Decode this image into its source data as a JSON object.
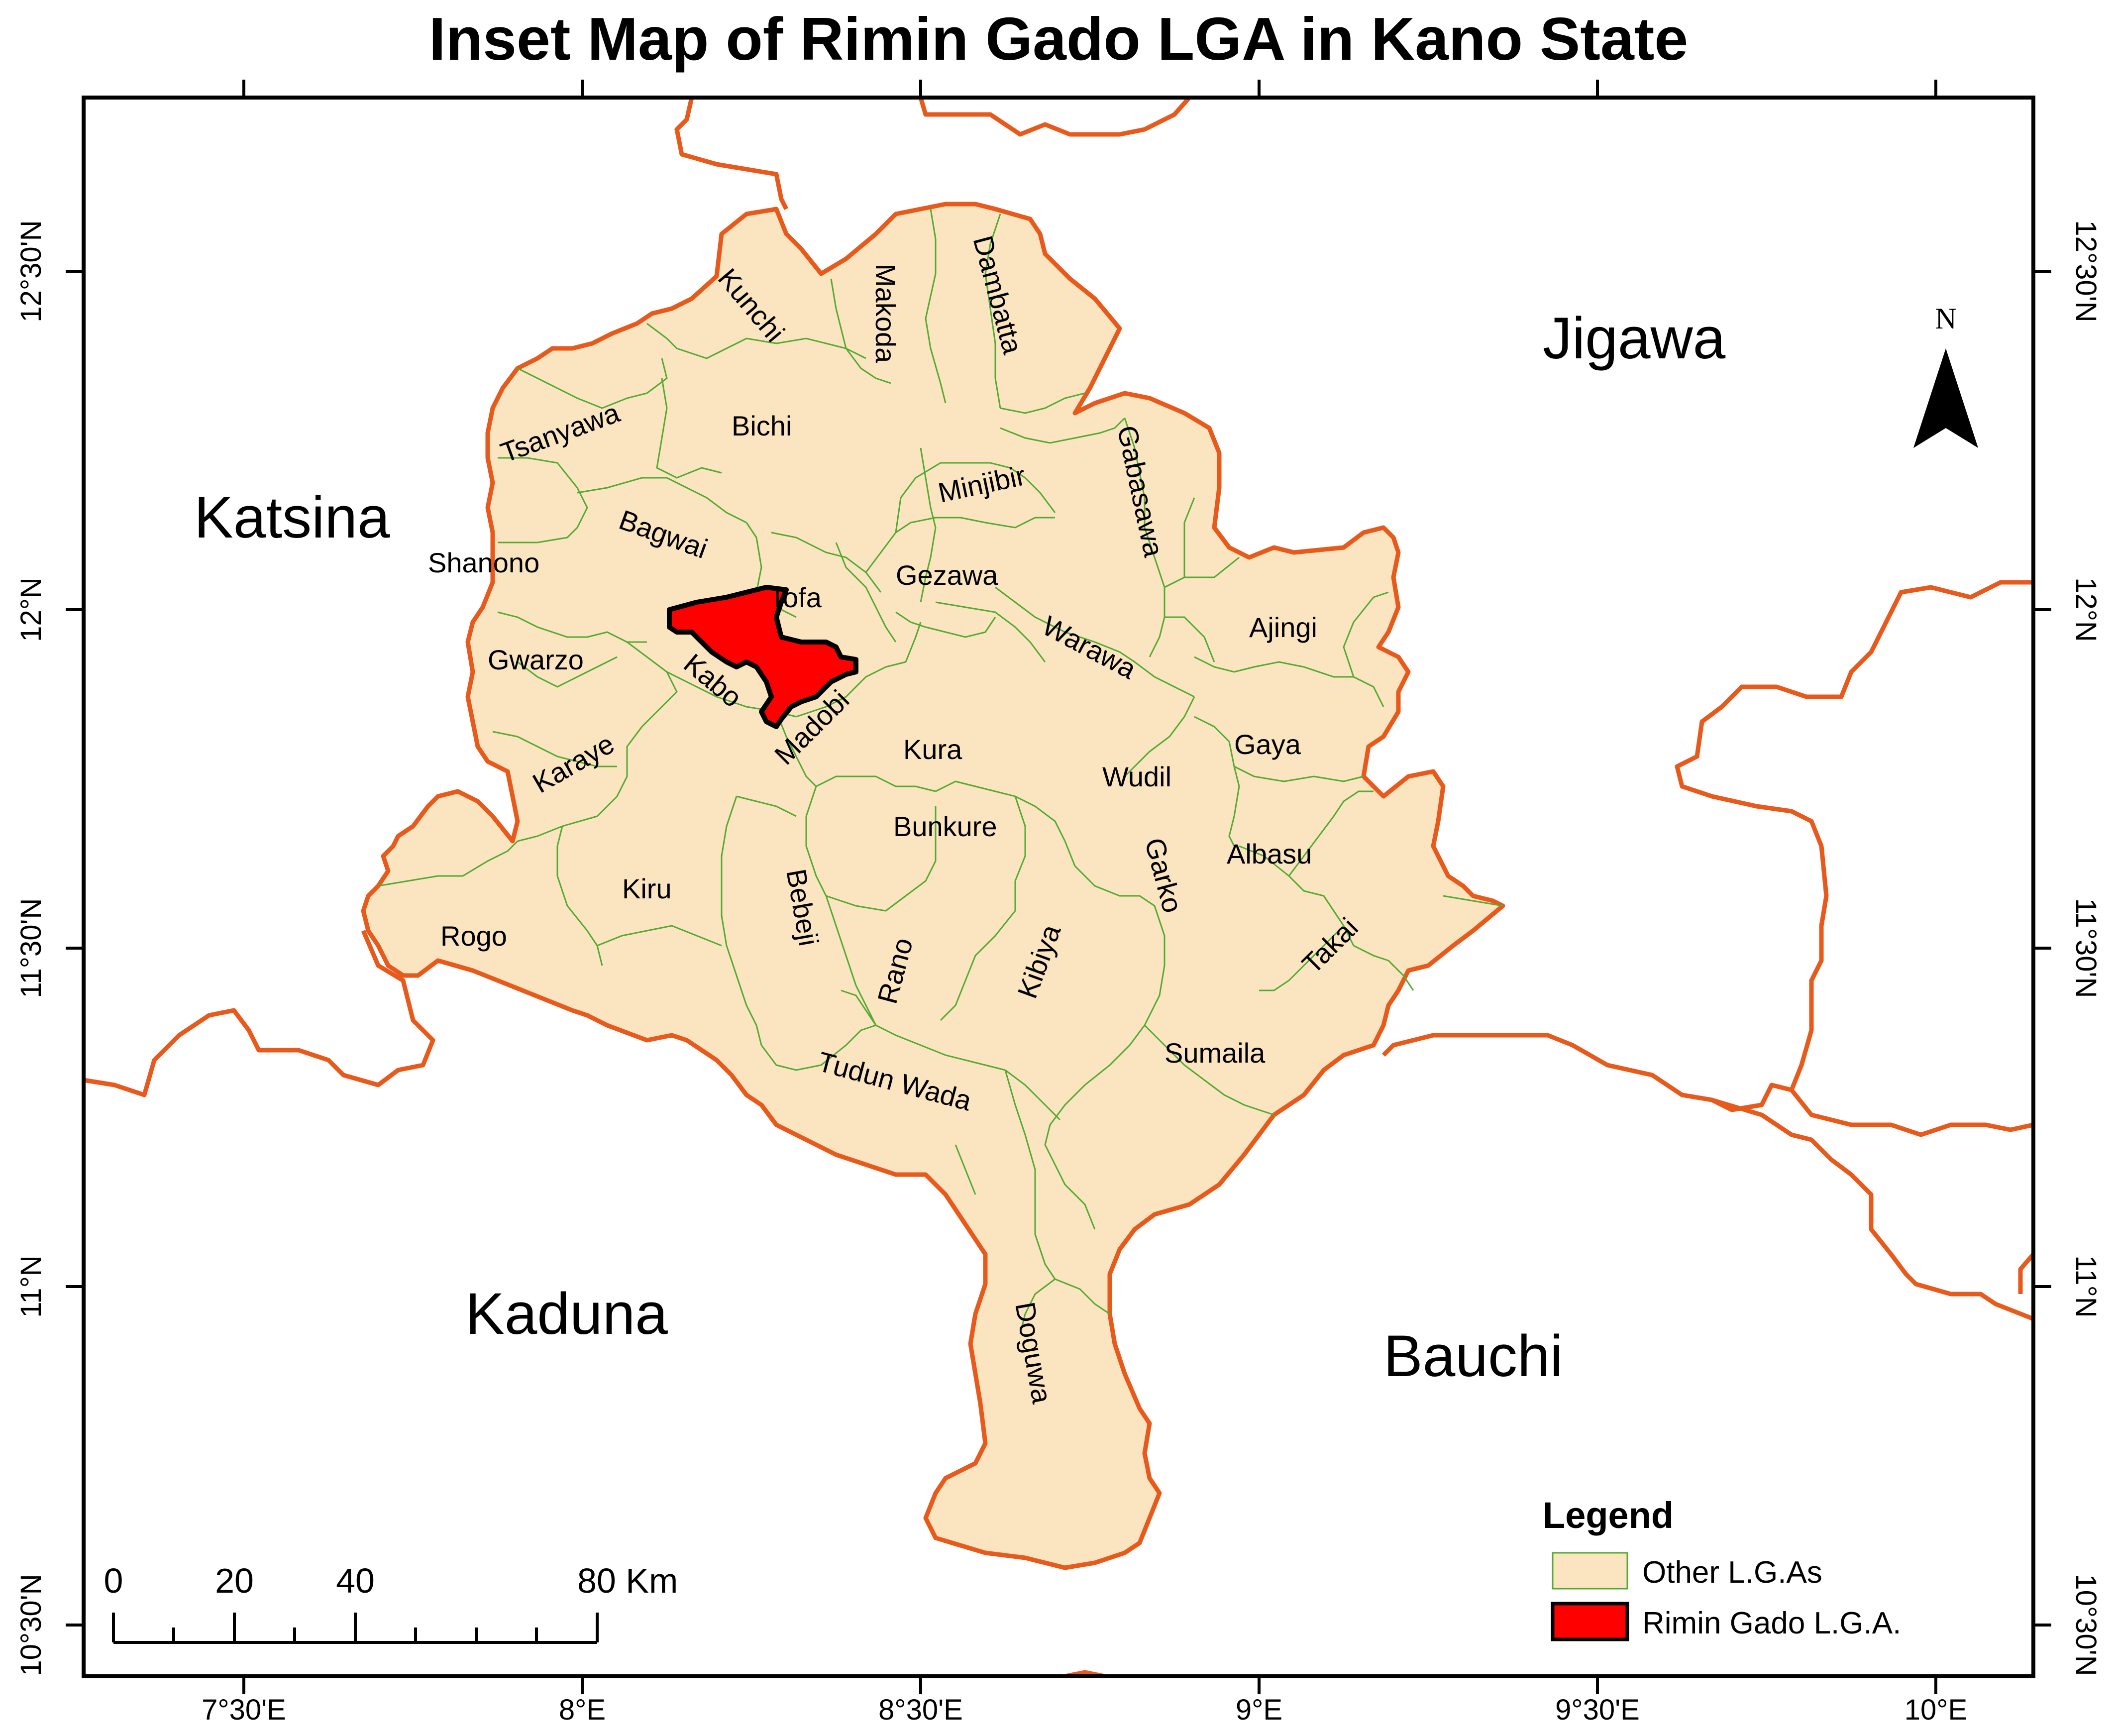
{
  "title": "Inset Map of Rimin Gado LGA  in Kano State",
  "graticule": {
    "longitudes": [
      "7°30'E",
      "8°E",
      "8°30'E",
      "9°E",
      "9°30'E",
      "10°E"
    ],
    "latitudes": [
      "12°30'N",
      "12°N",
      "11°30'N",
      "11°N",
      "10°30'N"
    ]
  },
  "states": [
    "Katsina",
    "Jigawa",
    "Kaduna",
    "Bauchi"
  ],
  "lgas": [
    "Kunchi",
    "Makoda",
    "Dambatta",
    "Tsanyawa",
    "Bichi",
    "Minjibir",
    "Gabasawa",
    "Bagwai",
    "Shanono",
    "Tofa",
    "Gezawa",
    "Ajingi",
    "Gwarzo",
    "Kabo",
    "Warawa",
    "Madobi",
    "Kura",
    "Gaya",
    "Karaye",
    "Wudil",
    "Bunkure",
    "Albasu",
    "Kiru",
    "Bebeji",
    "Garko",
    "Rogo",
    "Rano",
    "Kibiya",
    "Takai",
    "Sumaila",
    "Tudun Wada",
    "Doguwa"
  ],
  "north_arrow": {
    "label": "N"
  },
  "scale_bar": {
    "labels": [
      "0",
      "20",
      "40",
      "80 Km"
    ]
  },
  "legend": {
    "title": "Legend",
    "items": [
      {
        "label": "Other L.G.As",
        "fill": "#fbe5c0",
        "stroke": "#55aa33"
      },
      {
        "label": "Rimin Gado L.G.A.",
        "fill": "#ff0000",
        "stroke": "#000000"
      }
    ]
  },
  "colors": {
    "lga_fill": "#fbe5c0",
    "lga_boundary": "#55aa33",
    "state_boundary": "#e85a1c",
    "highlight": "#ff0000"
  }
}
